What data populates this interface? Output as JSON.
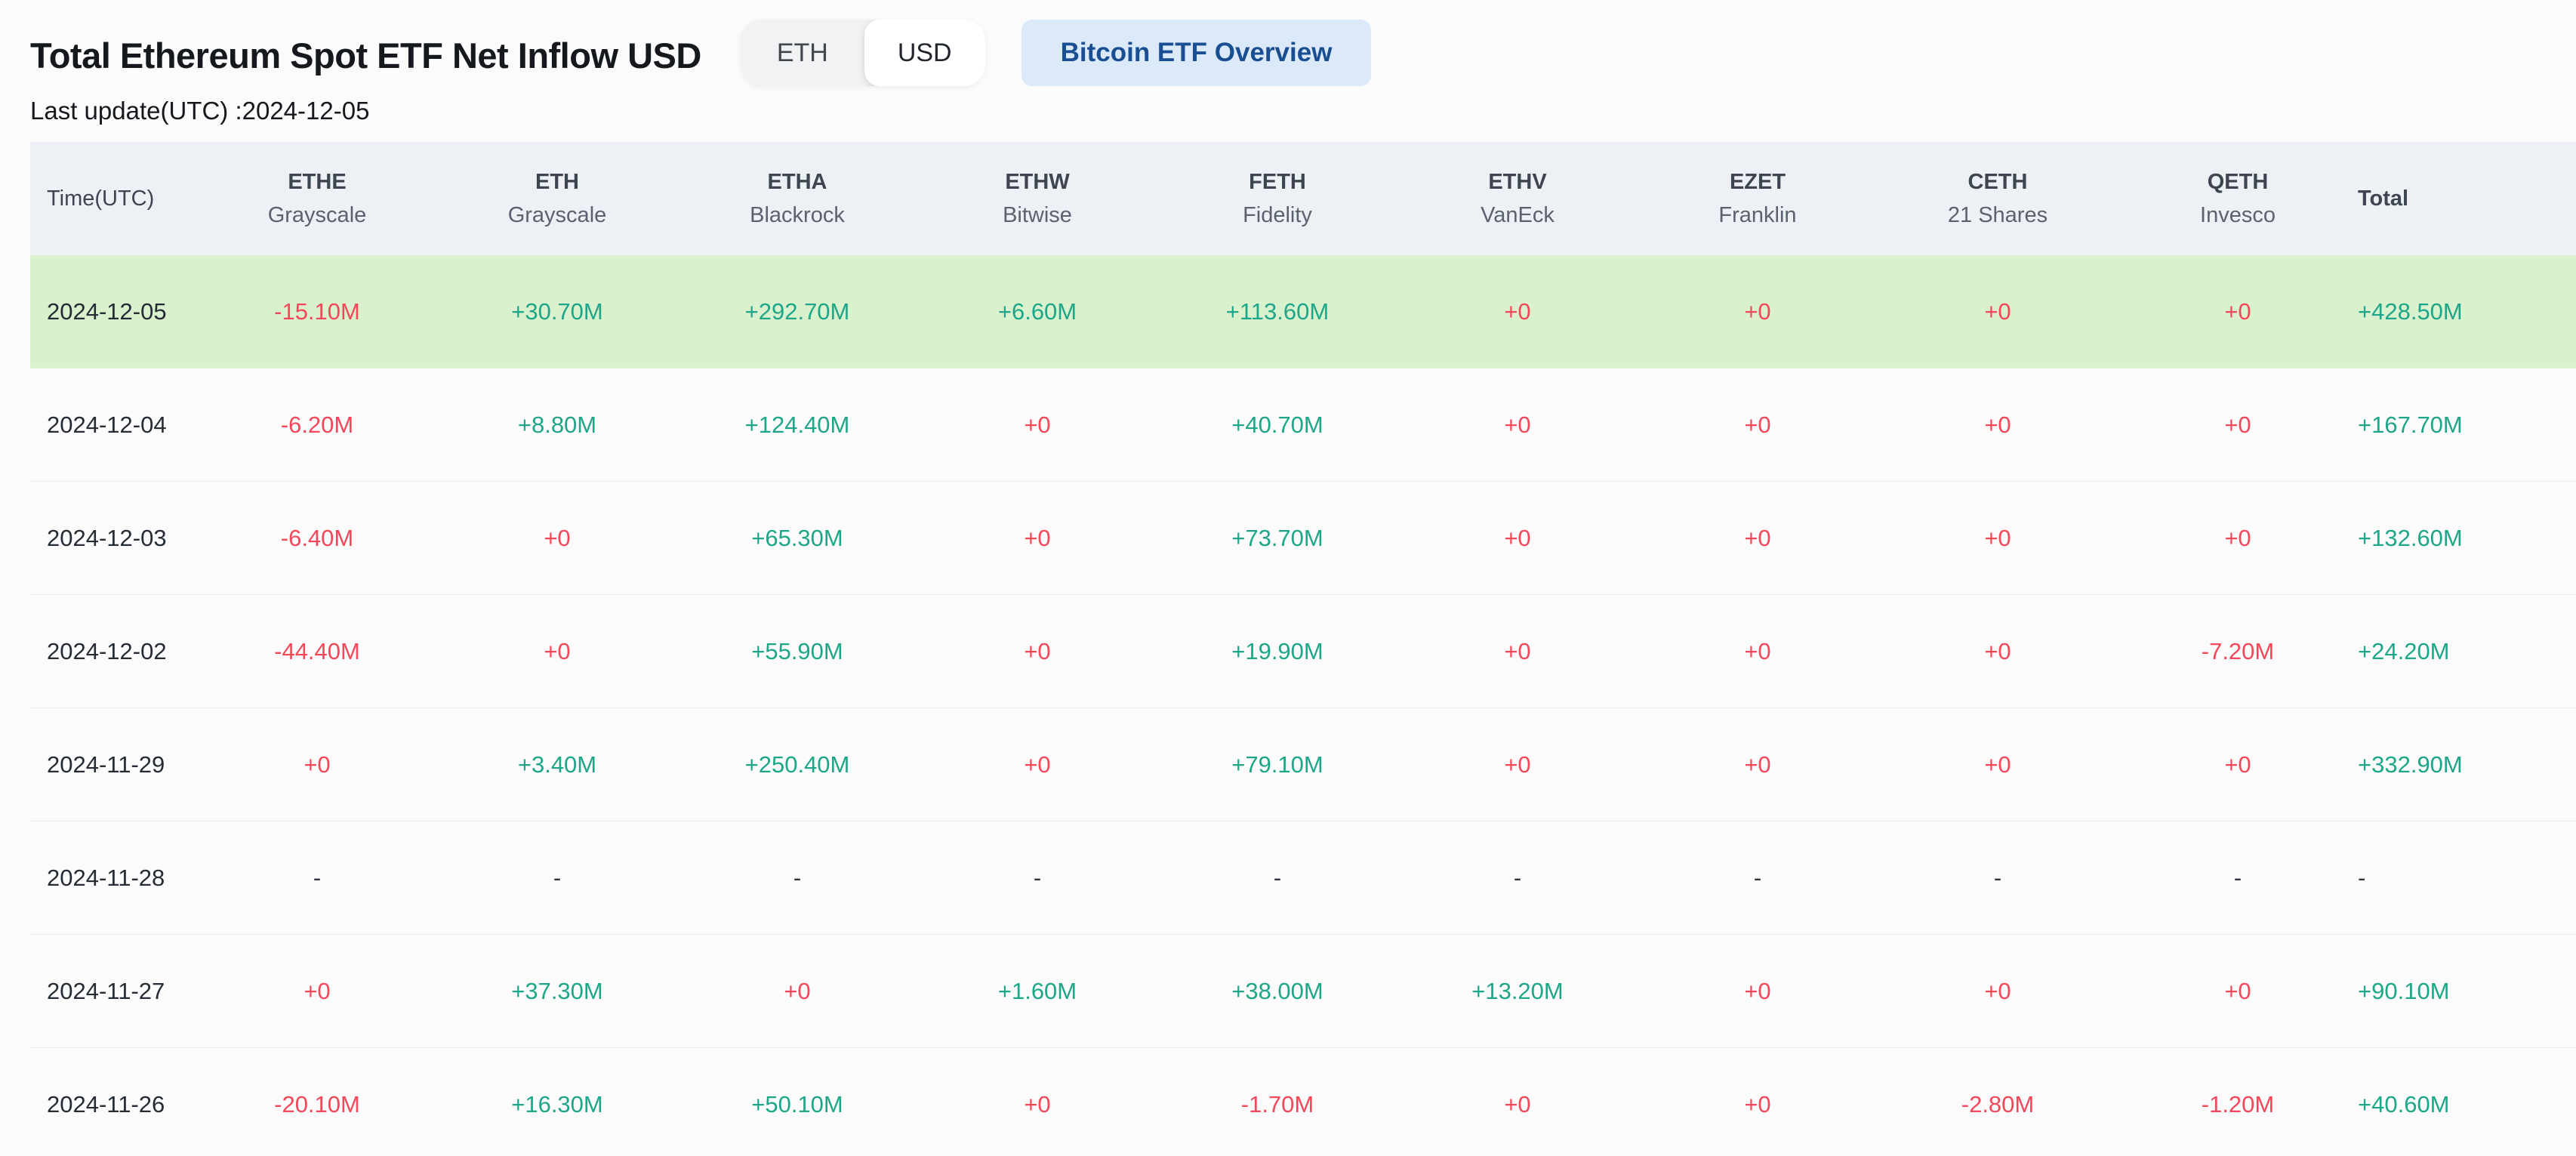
{
  "header": {
    "title": "Total Ethereum Spot ETF Net Inflow USD",
    "last_update": "Last update(UTC) :2024-12-05",
    "toggle": {
      "options": [
        "ETH",
        "USD"
      ],
      "selected": "USD"
    },
    "overview_button": "Bitcoin ETF Overview"
  },
  "colors": {
    "positive": "#1ea688",
    "negative": "#f5475a",
    "neutral": "#2f3640",
    "highlight_row_bg": "#d9f1cd",
    "header_bg": "#edf0f4",
    "button_bg": "#dbe9f8",
    "button_text": "#1a4e93"
  },
  "table": {
    "columns": [
      {
        "ticker": "Time(UTC)",
        "company": ""
      },
      {
        "ticker": "ETHE",
        "company": "Grayscale"
      },
      {
        "ticker": "ETH",
        "company": "Grayscale"
      },
      {
        "ticker": "ETHA",
        "company": "Blackrock"
      },
      {
        "ticker": "ETHW",
        "company": "Bitwise"
      },
      {
        "ticker": "FETH",
        "company": "Fidelity"
      },
      {
        "ticker": "ETHV",
        "company": "VanEck"
      },
      {
        "ticker": "EZET",
        "company": "Franklin"
      },
      {
        "ticker": "CETH",
        "company": "21 Shares"
      },
      {
        "ticker": "QETH",
        "company": "Invesco"
      },
      {
        "ticker": "Total",
        "company": ""
      }
    ],
    "rows": [
      {
        "date": "2024-12-05",
        "highlight": true,
        "values": [
          "-15.10M",
          "+30.70M",
          "+292.70M",
          "+6.60M",
          "+113.60M",
          "+0",
          "+0",
          "+0",
          "+0",
          "+428.50M"
        ]
      },
      {
        "date": "2024-12-04",
        "highlight": false,
        "values": [
          "-6.20M",
          "+8.80M",
          "+124.40M",
          "+0",
          "+40.70M",
          "+0",
          "+0",
          "+0",
          "+0",
          "+167.70M"
        ]
      },
      {
        "date": "2024-12-03",
        "highlight": false,
        "values": [
          "-6.40M",
          "+0",
          "+65.30M",
          "+0",
          "+73.70M",
          "+0",
          "+0",
          "+0",
          "+0",
          "+132.60M"
        ]
      },
      {
        "date": "2024-12-02",
        "highlight": false,
        "values": [
          "-44.40M",
          "+0",
          "+55.90M",
          "+0",
          "+19.90M",
          "+0",
          "+0",
          "+0",
          "-7.20M",
          "+24.20M"
        ]
      },
      {
        "date": "2024-11-29",
        "highlight": false,
        "values": [
          "+0",
          "+3.40M",
          "+250.40M",
          "+0",
          "+79.10M",
          "+0",
          "+0",
          "+0",
          "+0",
          "+332.90M"
        ]
      },
      {
        "date": "2024-11-28",
        "highlight": false,
        "values": [
          "-",
          "-",
          "-",
          "-",
          "-",
          "-",
          "-",
          "-",
          "-",
          "-"
        ]
      },
      {
        "date": "2024-11-27",
        "highlight": false,
        "values": [
          "+0",
          "+37.30M",
          "+0",
          "+1.60M",
          "+38.00M",
          "+13.20M",
          "+0",
          "+0",
          "+0",
          "+90.10M"
        ]
      },
      {
        "date": "2024-11-26",
        "highlight": false,
        "values": [
          "-20.10M",
          "+16.30M",
          "+50.10M",
          "+0",
          "-1.70M",
          "+0",
          "+0",
          "-2.80M",
          "-1.20M",
          "+40.60M"
        ]
      }
    ]
  }
}
